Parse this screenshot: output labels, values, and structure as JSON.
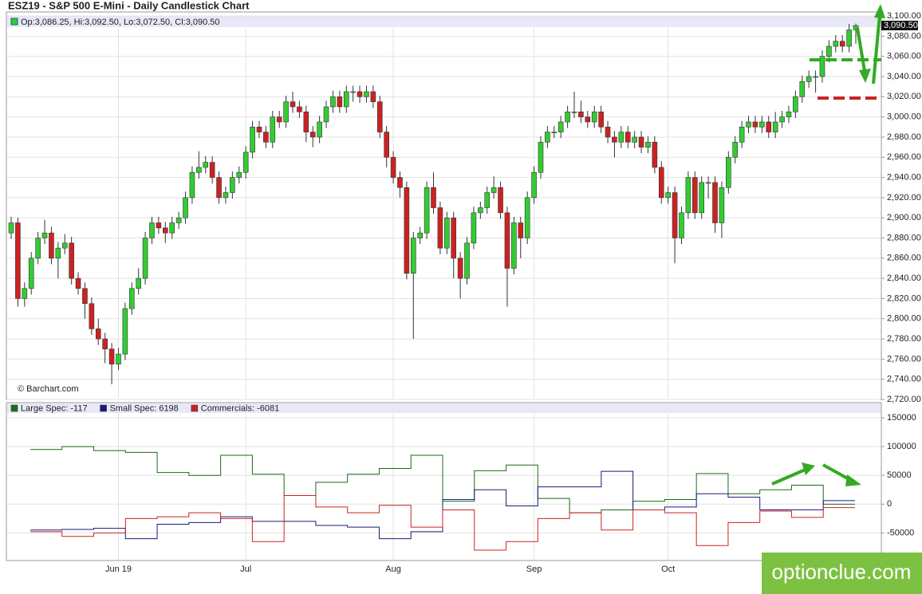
{
  "chart_data": [
    {
      "type": "candlestick",
      "title": "ESZ19 - S&P 500 E-Mini - Daily Candlestick Chart",
      "legend_text": "Op:3,086.25, Hi:3,092.50, Lo:3,072.50, Cl:3,090.50",
      "last_price_label": "3,090.50",
      "source": "© Barchart.com",
      "up_color": "#33cc33",
      "down_color": "#cc2222",
      "grid": true,
      "categories": [
        null,
        null,
        null,
        null,
        null,
        null,
        null,
        null,
        null,
        null,
        null,
        null,
        null,
        null,
        null,
        null,
        "Jun 19",
        null,
        null,
        null,
        null,
        null,
        null,
        null,
        null,
        null,
        null,
        null,
        null,
        null,
        null,
        null,
        null,
        null,
        null,
        "Jul",
        null,
        null,
        null,
        null,
        null,
        null,
        null,
        null,
        null,
        null,
        null,
        null,
        null,
        null,
        null,
        null,
        null,
        null,
        null,
        null,
        null,
        "Aug",
        null,
        null,
        null,
        null,
        null,
        null,
        null,
        null,
        null,
        null,
        null,
        null,
        null,
        null,
        null,
        null,
        null,
        null,
        null,
        null,
        "Sep",
        null,
        null,
        null,
        null,
        null,
        null,
        null,
        null,
        null,
        null,
        null,
        null,
        null,
        null,
        null,
        null,
        null,
        null,
        null,
        "Oct",
        null,
        null,
        null,
        null,
        null,
        null,
        null,
        null,
        null,
        null,
        null,
        null,
        null,
        null,
        null,
        null,
        null,
        null,
        null,
        null,
        null,
        null,
        null,
        null,
        null,
        null,
        null,
        null
      ],
      "open": [
        2885,
        2895,
        2820,
        2830,
        2860,
        2880,
        2885,
        2860,
        2870,
        2875,
        2840,
        2830,
        2815,
        2790,
        2780,
        2770,
        2755,
        2765,
        2810,
        2830,
        2840,
        2880,
        2895,
        2890,
        2885,
        2895,
        2900,
        2920,
        2945,
        2950,
        2955,
        2940,
        2920,
        2925,
        2940,
        2945,
        2965,
        2990,
        2985,
        2975,
        3000,
        2995,
        3015,
        3010,
        3005,
        2985,
        2980,
        2995,
        3010,
        3020,
        3010,
        3025,
        3025,
        3020,
        3025,
        3015,
        2985,
        2960,
        2940,
        2930,
        2845,
        2880,
        2885,
        2930,
        2910,
        2870,
        2900,
        2860,
        2840,
        2875,
        2905,
        2910,
        2925,
        2930,
        2905,
        2850,
        2895,
        2880,
        2920,
        2945,
        2975,
        2985,
        2985,
        2995,
        3005,
        3005,
        3000,
        2995,
        3005,
        2990,
        2980,
        2975,
        2985,
        2975,
        2980,
        2970,
        2975,
        2950,
        2920,
        2925,
        2880,
        2905,
        2940,
        2905,
        2935,
        2935,
        2895,
        2930,
        2960,
        2975,
        2990,
        2995,
        2990,
        2995,
        2985,
        2995,
        3000,
        3005,
        3020,
        3035,
        3040,
        3040,
        3060,
        3070,
        3075,
        3070,
        3086.25
      ],
      "high": [
        2901,
        2900,
        2836,
        2866,
        2886,
        2898,
        2891,
        2876,
        2884,
        2881,
        2846,
        2836,
        2821,
        2800,
        2786,
        2776,
        2771,
        2816,
        2836,
        2850,
        2886,
        2901,
        2901,
        2896,
        2901,
        2906,
        2926,
        2951,
        2966,
        2961,
        2961,
        2946,
        2931,
        2946,
        2951,
        2971,
        2996,
        2996,
        2991,
        3006,
        3006,
        3021,
        3025,
        3016,
        3011,
        2991,
        3001,
        3016,
        3026,
        3026,
        3031,
        3031,
        3031,
        3031,
        3031,
        3021,
        2991,
        2966,
        2946,
        2936,
        2886,
        2891,
        2936,
        2945,
        2916,
        2906,
        2906,
        2866,
        2881,
        2911,
        2916,
        2931,
        2941,
        2936,
        2911,
        2901,
        2901,
        2926,
        2951,
        2981,
        2991,
        2991,
        3001,
        3011,
        3025,
        3016,
        3006,
        3011,
        3011,
        2996,
        2986,
        2991,
        2991,
        2986,
        2986,
        2981,
        2981,
        2956,
        2931,
        2931,
        2911,
        2946,
        2946,
        2941,
        2941,
        2941,
        2936,
        2966,
        2981,
        2996,
        3001,
        3001,
        3001,
        3001,
        3005,
        3006,
        3011,
        3026,
        3041,
        3046,
        3046,
        3066,
        3076,
        3081,
        3081,
        3092,
        3092.5
      ],
      "low": [
        2879,
        2812,
        2812,
        2824,
        2854,
        2874,
        2854,
        2840,
        2864,
        2834,
        2824,
        2800,
        2784,
        2774,
        2756,
        2735,
        2749,
        2759,
        2804,
        2824,
        2834,
        2874,
        2884,
        2875,
        2879,
        2889,
        2894,
        2914,
        2939,
        2944,
        2934,
        2914,
        2914,
        2919,
        2934,
        2939,
        2959,
        2979,
        2969,
        2969,
        2989,
        2989,
        3004,
        2999,
        2975,
        2970,
        2974,
        2989,
        3004,
        3004,
        3004,
        3015,
        3014,
        3014,
        3009,
        2979,
        2950,
        2934,
        2920,
        2839,
        2780,
        2874,
        2879,
        2904,
        2864,
        2864,
        2840,
        2820,
        2834,
        2869,
        2899,
        2904,
        2919,
        2899,
        2812,
        2844,
        2860,
        2874,
        2914,
        2939,
        2969,
        2979,
        2979,
        2989,
        2999,
        2994,
        2989,
        2989,
        2984,
        2974,
        2960,
        2969,
        2969,
        2969,
        2964,
        2964,
        2944,
        2914,
        2914,
        2855,
        2874,
        2899,
        2899,
        2899,
        2919,
        2885,
        2880,
        2924,
        2954,
        2969,
        2984,
        2984,
        2984,
        2979,
        2979,
        2989,
        2994,
        2999,
        3014,
        3029,
        3024,
        3034,
        3054,
        3064,
        3064,
        3064,
        3072.5
      ],
      "close": [
        2895,
        2820,
        2830,
        2860,
        2880,
        2885,
        2860,
        2870,
        2875,
        2840,
        2830,
        2815,
        2790,
        2780,
        2770,
        2755,
        2765,
        2810,
        2830,
        2840,
        2880,
        2895,
        2890,
        2885,
        2895,
        2900,
        2920,
        2945,
        2950,
        2955,
        2940,
        2920,
        2925,
        2940,
        2945,
        2965,
        2990,
        2985,
        2975,
        3000,
        2995,
        3015,
        3010,
        3005,
        2985,
        2980,
        2995,
        3010,
        3020,
        3010,
        3025,
        3025,
        3020,
        3025,
        3015,
        2985,
        2960,
        2940,
        2930,
        2845,
        2880,
        2885,
        2930,
        2910,
        2870,
        2900,
        2860,
        2840,
        2875,
        2905,
        2910,
        2925,
        2930,
        2905,
        2850,
        2895,
        2880,
        2920,
        2945,
        2975,
        2985,
        2985,
        2995,
        3005,
        3005,
        3000,
        2995,
        3005,
        2990,
        2980,
        2975,
        2985,
        2975,
        2980,
        2970,
        2975,
        2950,
        2920,
        2925,
        2880,
        2905,
        2940,
        2905,
        2935,
        2935,
        2895,
        2930,
        2960,
        2975,
        2990,
        2995,
        2990,
        2995,
        2985,
        2995,
        3000,
        3005,
        3020,
        3035,
        3040,
        3040,
        3060,
        3070,
        3075,
        3070,
        3086.25,
        3090.5
      ],
      "ylim": [
        2720,
        3104
      ],
      "yticks": [
        {
          "value": 2720,
          "label": "2,720.00"
        },
        {
          "value": 2740,
          "label": "2,740.00"
        },
        {
          "value": 2760,
          "label": "2,760.00"
        },
        {
          "value": 2780,
          "label": "2,780.00"
        },
        {
          "value": 2800,
          "label": "2,800.00"
        },
        {
          "value": 2820,
          "label": "2,820.00"
        },
        {
          "value": 2840,
          "label": "2,840.00"
        },
        {
          "value": 2860,
          "label": "2,860.00"
        },
        {
          "value": 2880,
          "label": "2,880.00"
        },
        {
          "value": 2900,
          "label": "2,900.00"
        },
        {
          "value": 2920,
          "label": "2,920.00"
        },
        {
          "value": 2940,
          "label": "2,940.00"
        },
        {
          "value": 2960,
          "label": "2,960.00"
        },
        {
          "value": 2980,
          "label": "2,980.00"
        },
        {
          "value": 3000,
          "label": "3,000.00"
        },
        {
          "value": 3020,
          "label": "3,020.00"
        },
        {
          "value": 3040,
          "label": "3,040.00"
        },
        {
          "value": 3060,
          "label": "3,060.00"
        },
        {
          "value": 3080,
          "label": "3,080.00"
        },
        {
          "value": 3100,
          "label": "3,100.00"
        }
      ]
    },
    {
      "type": "step",
      "series": [
        {
          "name": "Large Spec: -117",
          "color": "#1a6b1a",
          "values": [
            95000,
            100000,
            93000,
            90000,
            55000,
            50000,
            85000,
            52000,
            15000,
            38000,
            52000,
            62000,
            85000,
            5000,
            58000,
            68000,
            10000,
            -15000,
            -10000,
            5000,
            8000,
            53000,
            18000,
            25000,
            33000,
            -117
          ]
        },
        {
          "name": "Small Spec: 6198",
          "color": "#1a1a7a",
          "values": [
            -45000,
            -44000,
            -42000,
            -60000,
            -35000,
            -32000,
            -22000,
            -30000,
            -30000,
            -37000,
            -40000,
            -60000,
            -48000,
            8000,
            25000,
            -3000,
            30000,
            30000,
            57000,
            -10000,
            -5000,
            18000,
            12000,
            -10000,
            -10000,
            6198
          ]
        },
        {
          "name": "Commercials: -6081",
          "color": "#cc2222",
          "values": [
            -48000,
            -56000,
            -50000,
            -25000,
            -22000,
            -15000,
            -25000,
            -65000,
            15000,
            -5000,
            -15000,
            -2000,
            -40000,
            -10000,
            -80000,
            -65000,
            -25000,
            -15000,
            -45000,
            -10000,
            -15000,
            -72000,
            -32000,
            -12000,
            -23000,
            -6081
          ]
        }
      ],
      "ylim": [
        -98000,
        157000
      ],
      "yticks": [
        -50000,
        0,
        50000,
        100000,
        150000
      ]
    }
  ],
  "watermark": "optionclue.com"
}
